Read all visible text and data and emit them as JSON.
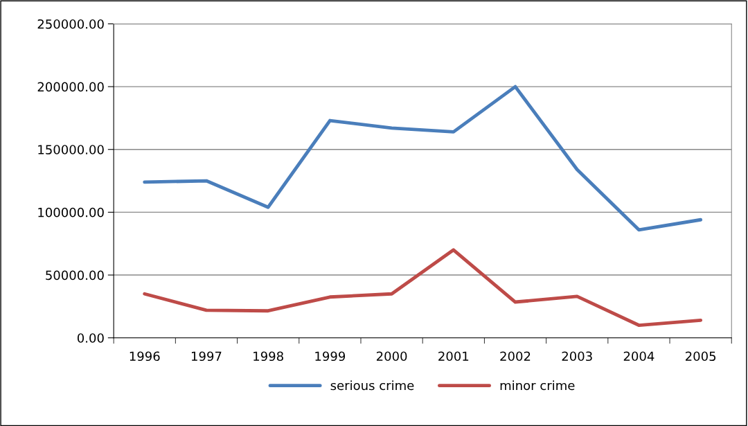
{
  "chart_data": {
    "type": "line",
    "categories": [
      "1996",
      "1997",
      "1998",
      "1999",
      "2000",
      "2001",
      "2002",
      "2003",
      "2004",
      "2005"
    ],
    "series": [
      {
        "name": "serious crime",
        "color": "#4a7ebb",
        "values": [
          124000,
          125000,
          104000,
          173000,
          167000,
          164000,
          200000,
          134000,
          86000,
          94000
        ]
      },
      {
        "name": "minor crime",
        "color": "#be4b48",
        "values": [
          35000,
          22000,
          21500,
          32500,
          35000,
          70000,
          28500,
          33000,
          10000,
          14000
        ]
      }
    ],
    "ylim": [
      0,
      250000
    ],
    "yticks": [
      {
        "value": 0,
        "label": "0.00"
      },
      {
        "value": 50000,
        "label": "50000.00"
      },
      {
        "value": 100000,
        "label": "100000.00"
      },
      {
        "value": 150000,
        "label": "150000.00"
      },
      {
        "value": 200000,
        "label": "200000.00"
      },
      {
        "value": 250000,
        "label": "250000.00"
      }
    ],
    "grid": "y",
    "legend": "bottom",
    "marker": "none",
    "line_style": "solid"
  }
}
